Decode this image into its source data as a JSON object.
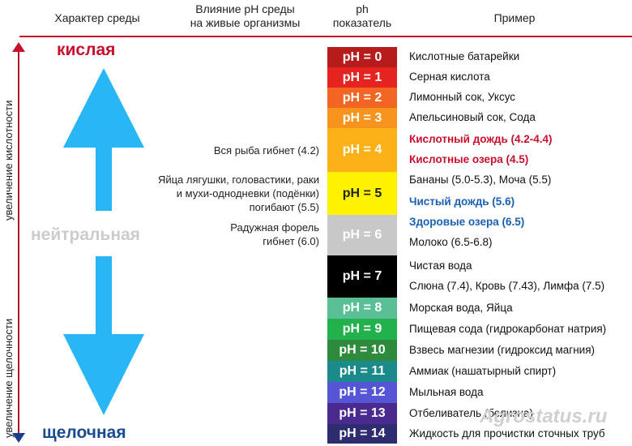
{
  "headers": {
    "character": "Характер среды",
    "effect_line1": "Влияние pH среды",
    "effect_line2": "на живые организмы",
    "ph_line1": "ph",
    "ph_line2": "показатель",
    "example": "Пример"
  },
  "axis": {
    "acid_label": "увеличение кислотности",
    "alkali_label": "увеличение щелочности"
  },
  "characters": {
    "acidic": "кислая",
    "neutral": "нейтральная",
    "alkaline": "щелочная"
  },
  "colors": {
    "acidic": "#c8102e",
    "neutral": "#cccccc",
    "alkaline": "#1a4a8f",
    "arrow": "#29b6f6",
    "header_line": "#c8102e"
  },
  "scale": [
    {
      "label": "pH = 0",
      "color": "#b71c1c"
    },
    {
      "label": "pH = 1",
      "color": "#e52421"
    },
    {
      "label": "pH = 2",
      "color": "#f26522"
    },
    {
      "label": "pH = 3",
      "color": "#f7941d"
    },
    {
      "label": "pH = 4",
      "color": "#fbb117"
    },
    {
      "label": "pH = 5",
      "color": "#fff200"
    },
    {
      "label": "pH = 6",
      "color": "#c8c8c8"
    },
    {
      "label": "pH = 7",
      "color": "#000000"
    },
    {
      "label": "pH = 8",
      "color": "#5bbf96"
    },
    {
      "label": "pH = 9",
      "color": "#22b14c"
    },
    {
      "label": "pH = 10",
      "color": "#2e8b3e"
    },
    {
      "label": "pH = 11",
      "color": "#1b8a8a"
    },
    {
      "label": "pH = 12",
      "color": "#5555d5"
    },
    {
      "label": "pH = 13",
      "color": "#4b2a8f"
    },
    {
      "label": "pH = 14",
      "color": "#2c2c6f"
    }
  ],
  "effects": {
    "ph4": "Вся рыба гибнет (4.2)",
    "ph5_line1": "Яйца лягушки, головастики, раки",
    "ph5_line2": "и мухи-однодневки (подёнки)",
    "ph5_line3": "погибают (5.5)",
    "ph6_line1": "Радужная форель",
    "ph6_line2": "гибнет (6.0)"
  },
  "examples": [
    {
      "text": "Кислотные батарейки",
      "style": "normal"
    },
    {
      "text": "Серная кислота",
      "style": "normal"
    },
    {
      "text": "Лимонный сок, Уксус",
      "style": "normal"
    },
    {
      "text": "Апельсиновый сок, Сода",
      "style": "normal"
    },
    {
      "text": "Кислотный дождь (4.2-4.4)",
      "style": "red"
    },
    {
      "text": "Кислотные озера (4.5)",
      "style": "red"
    },
    {
      "text": "Бананы (5.0-5.3), Моча (5.5)",
      "style": "normal"
    },
    {
      "text": "Чистый дождь (5.6)",
      "style": "blue"
    },
    {
      "text": "Здоровые озера (6.5)",
      "style": "blue"
    },
    {
      "text": "Молоко (6.5-6.8)",
      "style": "normal"
    },
    {
      "text": "Чистая вода",
      "style": "normal"
    },
    {
      "text": "Слюна (7.4), Кровь (7.43), Лимфа (7.5)",
      "style": "normal"
    },
    {
      "text": "Морская вода, Яйца",
      "style": "normal"
    },
    {
      "text": "Пищевая сода (гидрокарбонат натрия)",
      "style": "normal"
    },
    {
      "text": "Взвесь магнезии (гидроксид магния)",
      "style": "normal"
    },
    {
      "text": "Аммиак (нашатырный спирт)",
      "style": "normal"
    },
    {
      "text": "Мыльная вода",
      "style": "normal"
    },
    {
      "text": "Отбеливатель (белизна)",
      "style": "normal"
    },
    {
      "text": "Жидкость для прочистки сточных труб",
      "style": "normal"
    }
  ],
  "watermark": "Agrostatus.ru"
}
